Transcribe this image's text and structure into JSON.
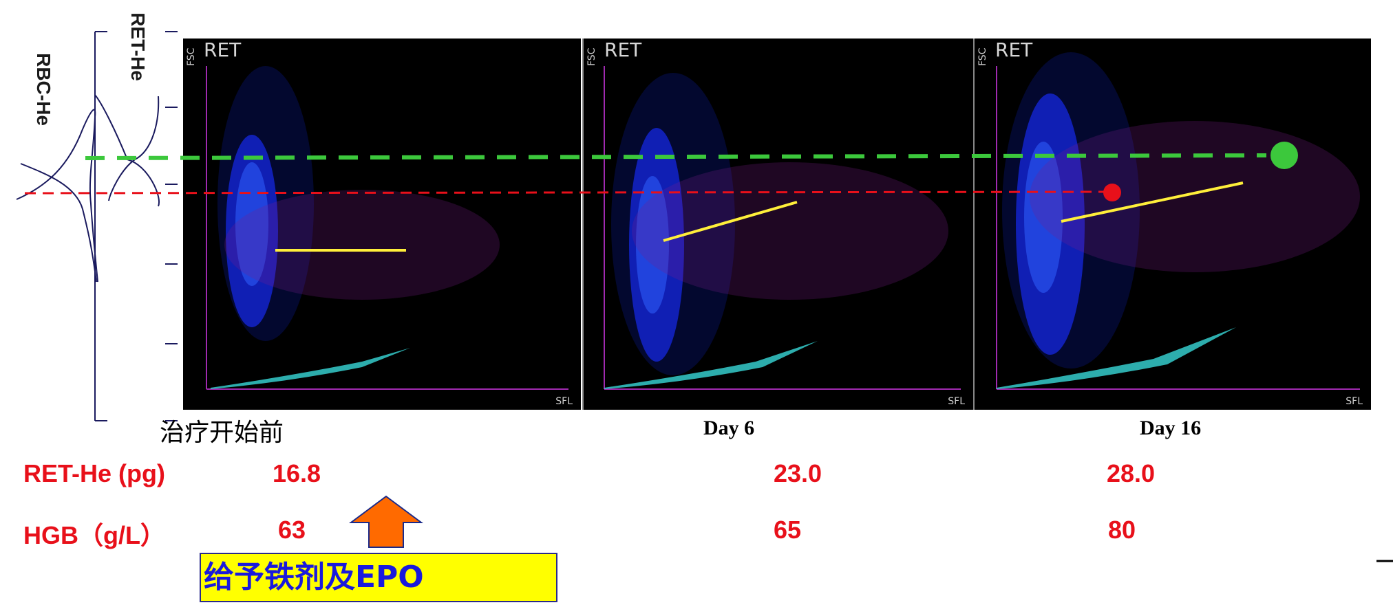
{
  "left_axis": {
    "ret_he_label": "RET-He",
    "rbc_he_label": "RBC-He"
  },
  "panels": [
    {
      "title": "RET",
      "x_axis_label": "SFL",
      "y_axis_label": "FSC",
      "caption": "治疗开始前"
    },
    {
      "title": "RET",
      "x_axis_label": "SFL",
      "y_axis_label": "FSC",
      "caption": "Day 6"
    },
    {
      "title": "RET",
      "x_axis_label": "SFL",
      "y_axis_label": "FSC",
      "caption": "Day 16"
    }
  ],
  "table": {
    "ret_he": {
      "label": "RET-He (pg)",
      "values": [
        "16.8",
        "23.0",
        "28.0"
      ]
    },
    "hgb": {
      "label": "HGB（g/L）",
      "values": [
        "63",
        "65",
        "80"
      ]
    }
  },
  "callout": {
    "text": "给予铁剂及EPO"
  },
  "colors": {
    "green_reference": "#3cc83c",
    "red_reference": "#e8101a",
    "yellow_trend": "#ffef3a",
    "blue_cluster": "#1a2eff",
    "arrow": "#ff6a00",
    "text_red": "#e8101a",
    "callout_bg": "#ffff00",
    "callout_text": "#1a1adc"
  },
  "chart_data": {
    "type": "scatter",
    "panels": [
      {
        "caption": "治疗开始前",
        "ret_he_pg": 16.8,
        "hgb_g_per_l": 63
      },
      {
        "caption": "Day 6",
        "ret_he_pg": 23.0,
        "hgb_g_per_l": 65
      },
      {
        "caption": "Day 16",
        "ret_he_pg": 28.0,
        "hgb_g_per_l": 80
      }
    ],
    "xlabel": "SFL",
    "ylabel": "FSC"
  }
}
